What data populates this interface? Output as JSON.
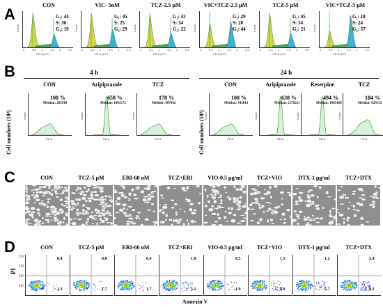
{
  "panel_a": {
    "letter": "A",
    "titles": [
      "CON",
      "VIC- 5nM",
      "TCZ-2.5 μM",
      "VIC+TCZ-2.5 μM",
      "TCZ-5 μM",
      "VIC+TCZ-5 μM"
    ],
    "stats": [
      [
        "G₁: 44",
        "S: 36",
        "G₂: 19"
      ],
      [
        "G₁: 45",
        "S: 25",
        "G₂: 29"
      ],
      [
        "G₁: 43",
        "S: 34",
        "G₂: 22"
      ],
      [
        "G₁: 29",
        "S: 28",
        "G₂: 44"
      ],
      [
        "G₁: 45",
        "S: 34",
        "G₂: 21"
      ],
      [
        "G₁: 18",
        "S: 24",
        "G₂: 57"
      ]
    ],
    "xlabel": "PE-A (10⁵)",
    "ylabel": "Count",
    "ticks": [
      "0",
      "0.5",
      "1",
      "1.5",
      "2",
      "2.5"
    ]
  },
  "panel_b": {
    "letter": "B",
    "ylabel": "Cell numbers (10³)",
    "group_4h": "4 h",
    "group_24h": "24 h",
    "plots_4h": [
      {
        "title": "CON",
        "pct": "100 %",
        "median": "Median: 285918"
      },
      {
        "title": "Aripiprazole",
        "pct": "658 %",
        "median": "Median: 1881572"
      },
      {
        "title": "TCZ",
        "pct": "178 %",
        "median": "Median: 507842"
      }
    ],
    "plots_24h": [
      {
        "title": "CON",
        "pct": "100 %",
        "median": "Median: 343013"
      },
      {
        "title": "Aripiprazole",
        "pct": "638 %",
        "median": "Median: 2176221"
      },
      {
        "title": "Reserpine",
        "pct": "494 %",
        "median": "Median: 1683189"
      },
      {
        "title": "TCZ",
        "pct": "184 %",
        "median": "Median: 629155"
      }
    ],
    "xlabel": "PE-A",
    "ylabel_small": "Count"
  },
  "panel_c": {
    "letter": "C",
    "titles": [
      "CON",
      "TCZ-5 μM",
      "ERI-60 nM",
      "TCZ+ERI",
      "VIO-0.5 μg/ml",
      "TCZ+VIO",
      "DTX-1 μg/ml",
      "TCZ+DTX"
    ]
  },
  "panel_d": {
    "letter": "D",
    "ylabel": "PI",
    "xlabel": "Annexin V",
    "yticks": [
      "10⁴",
      "10³",
      "10²",
      "10¹"
    ],
    "titles": [
      "CON",
      "TCZ-5 μM",
      "ERI-60 nM",
      "TCZ+ERI",
      "VIO-0.5 μg/ml",
      "TCZ+VIO",
      "DTX-1 μg/ml",
      "TCZ+DTX"
    ],
    "upper_right": [
      "0.4",
      "0.8",
      "0.6",
      "1.8",
      "0.5",
      "1.5",
      "1.2",
      "2.4"
    ],
    "lower_right": [
      "1.3",
      "1.7",
      "1.7",
      "5.1",
      "1.9",
      "4.9",
      "5.7",
      "9.2"
    ]
  }
}
